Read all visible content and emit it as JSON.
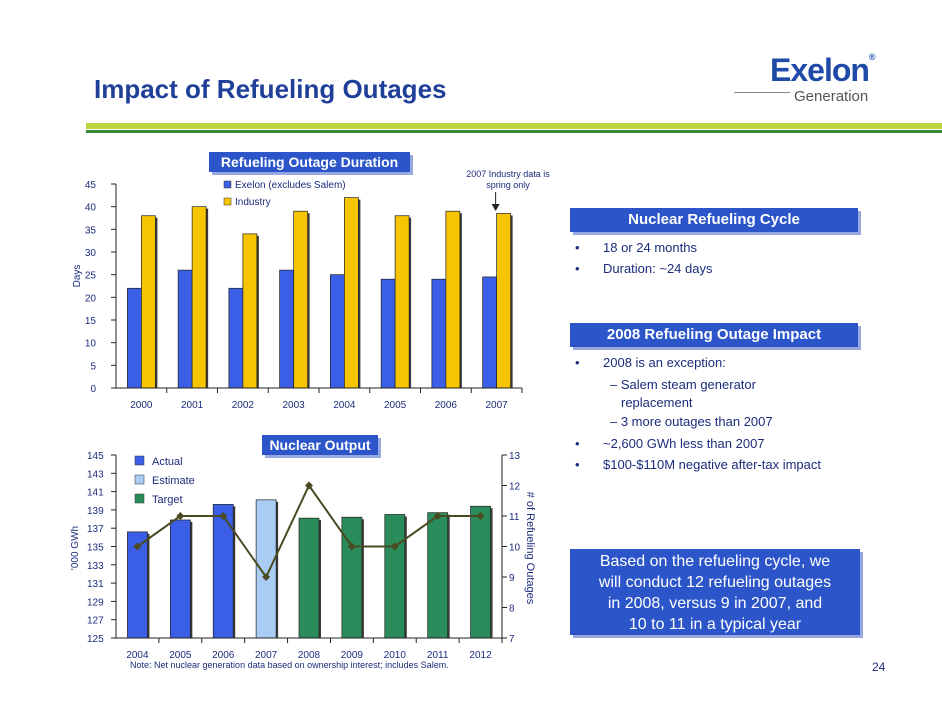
{
  "title": "Impact of Refueling Outages",
  "logo": {
    "wordmark": "Exelon",
    "sub": "Generation"
  },
  "chart_data": [
    {
      "type": "bar",
      "title": "Refueling Outage Duration",
      "categories": [
        "2000",
        "2001",
        "2002",
        "2003",
        "2004",
        "2005",
        "2006",
        "2007"
      ],
      "series": [
        {
          "name": "Exelon (excludes Salem)",
          "values": [
            22,
            26,
            22,
            26,
            25,
            24,
            24,
            24.5
          ],
          "color": "#3b5ee6"
        },
        {
          "name": "Industry",
          "values": [
            38,
            40,
            34,
            39,
            42,
            38,
            39,
            38.5
          ],
          "color": "#f6c400"
        }
      ],
      "ylabel": "Days",
      "ylim": [
        0,
        45
      ],
      "yticks": [
        0,
        5,
        10,
        15,
        20,
        25,
        30,
        35,
        40,
        45
      ],
      "grid": false,
      "legend": "top-center",
      "annotation": "2007 Industry data is spring only"
    },
    {
      "type": "bar",
      "title": "Nuclear Output",
      "categories": [
        "2004",
        "2005",
        "2006",
        "2007",
        "2008",
        "2009",
        "2010",
        "2011",
        "2012"
      ],
      "values": [
        136.6,
        137.9,
        139.6,
        140.1,
        138.1,
        138.2,
        138.5,
        138.7,
        139.4
      ],
      "bar_status": [
        "Actual",
        "Actual",
        "Actual",
        "Estimate",
        "Target",
        "Target",
        "Target",
        "Target",
        "Target"
      ],
      "status_colors": {
        "Actual": "#3b5ee6",
        "Estimate": "#a8ccf4",
        "Target": "#2a8c5a"
      },
      "legend_entries": [
        "Actual",
        "Estimate",
        "Target"
      ],
      "ylabel": "'000 GWh",
      "ylim": [
        125,
        145
      ],
      "yticks": [
        125,
        127,
        129,
        131,
        133,
        135,
        137,
        139,
        141,
        143,
        145
      ],
      "line_series": {
        "values": [
          10,
          11,
          11,
          9,
          12,
          10,
          10,
          11,
          11
        ],
        "color": "#4a4a22",
        "axis_label": "# of Refueling Outages",
        "ylim": [
          7,
          13
        ],
        "yticks": [
          7,
          8,
          9,
          10,
          11,
          12,
          13
        ]
      },
      "grid": false,
      "legend": "top-left"
    }
  ],
  "panels": {
    "cycle": {
      "header": "Nuclear Refueling Cycle",
      "bullets": [
        "18 or 24 months",
        "Duration: ~24 days"
      ]
    },
    "impact": {
      "header": "2008 Refueling Outage Impact",
      "bullet1": "2008 is an exception:",
      "sub1a": "– Salem steam generator",
      "sub1b": "replacement",
      "sub2": "– 3 more outages than 2007",
      "bullet2": "~2,600 GWh less than 2007",
      "bullet3": "$100-$110M negative after-tax impact"
    },
    "bullet_char": "•"
  },
  "callout": {
    "line1": "Based on the refueling cycle, we",
    "line2": "will conduct 12 refueling outages",
    "line3": "in 2008, versus 9 in 2007, and",
    "line4": "10 to 11 in a typical year"
  },
  "note": "Note:  Net nuclear generation data based on ownership interest; includes Salem.",
  "page_number": "24"
}
